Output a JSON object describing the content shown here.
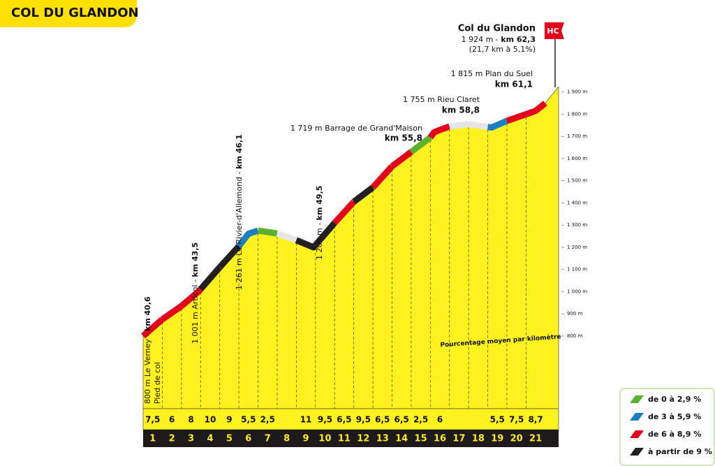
{
  "chart_data": {
    "type": "profile",
    "title": "COL DU GLANDON",
    "subtitle": "Pourcentage moyen par kilomètre",
    "categories": [
      "1",
      "2",
      "3",
      "4",
      "5",
      "6",
      "7",
      "8",
      "9",
      "10",
      "11",
      "12",
      "13",
      "14",
      "15",
      "16",
      "17",
      "18",
      "19",
      "20",
      "21"
    ],
    "values": [
      7.5,
      6,
      8,
      10,
      9,
      5.5,
      2.5,
      0,
      11,
      9.5,
      6.5,
      9.5,
      6.5,
      6.5,
      2.5,
      6,
      0,
      0,
      5.5,
      7.5,
      8.7
    ],
    "value_labels": [
      "7,5",
      "6",
      "8",
      "10",
      "9",
      "5,5",
      "2,5",
      null,
      "11",
      "9,5",
      "6,5",
      "9,5",
      "6,5",
      "6,5",
      "2,5",
      "6",
      null,
      null,
      "5,5",
      "7,5",
      "8,7"
    ],
    "profile": {
      "x": [
        0,
        1,
        2,
        2.9,
        4,
        5,
        5.5,
        6,
        7,
        8,
        8.9,
        10,
        11,
        12,
        13,
        14,
        15,
        15.2,
        16,
        17,
        18.2,
        19,
        20,
        20.5,
        21,
        21.7
      ],
      "y": [
        800,
        875,
        935,
        1001,
        1110,
        1205,
        1261,
        1275,
        1262,
        1232,
        1200,
        1310,
        1405,
        1470,
        1565,
        1630,
        1695,
        1719,
        1745,
        1755,
        1740,
        1770,
        1800,
        1815,
        1850,
        1924
      ]
    },
    "xlim": [
      0,
      21.7
    ],
    "ylim": [
      425,
      1940
    ],
    "yticks": [
      {
        "value": 800,
        "label": "800 m"
      },
      {
        "value": 900,
        "label": "900 m"
      },
      {
        "value": 1000,
        "label": "1 000 m"
      },
      {
        "value": 1100,
        "label": "1 100 m"
      },
      {
        "value": 1200,
        "label": "1 200 m"
      },
      {
        "value": 1300,
        "label": "1 300 m"
      },
      {
        "value": 1400,
        "label": "1 400 m"
      },
      {
        "value": 1500,
        "label": "1 500 m"
      },
      {
        "value": 1600,
        "label": "1 600 m"
      },
      {
        "value": 1700,
        "label": "1 700 m"
      },
      {
        "value": 1800,
        "label": "1 800 m"
      },
      {
        "value": 1900,
        "label": "1 900 m"
      }
    ],
    "legend": [
      {
        "label": "de 0 à 2,9 %",
        "from": 0,
        "color": "#5bb22f"
      },
      {
        "label": "de 3 à 5,9 %",
        "from": 3,
        "color": "#1c7fc4"
      },
      {
        "label": "de 6 à 8,9 %",
        "from": 6,
        "color": "#e3001b"
      },
      {
        "label": "à partir de 9 %",
        "from": 9,
        "color": "#231f20"
      }
    ],
    "fill_color": "#fff21f",
    "landmarks": [
      {
        "name": "800 m Le Verney",
        "km": "km 40,6",
        "note": "Pied de col"
      },
      {
        "name": "1 001 m Articol",
        "km": "km 43,5"
      },
      {
        "name": "1 261 m Le Rivier-d'Allemond",
        "km": "km 46,1"
      },
      {
        "name": "1 200 m",
        "km": "km 49,5"
      },
      {
        "name": "1 719 m Barrage de Grand'Maison",
        "km": "km 55,8"
      },
      {
        "name": "1 755 m Rieu Claret",
        "km": "km 58,8"
      },
      {
        "name": "1 815 m Plan du Suel",
        "km": "km 61,1"
      }
    ],
    "summit": {
      "name": "Col du Glandon",
      "altitude": "1 924 m",
      "km": "km 62,3",
      "stats": "(21,7 km à 5,1%)",
      "category": "HC"
    }
  }
}
